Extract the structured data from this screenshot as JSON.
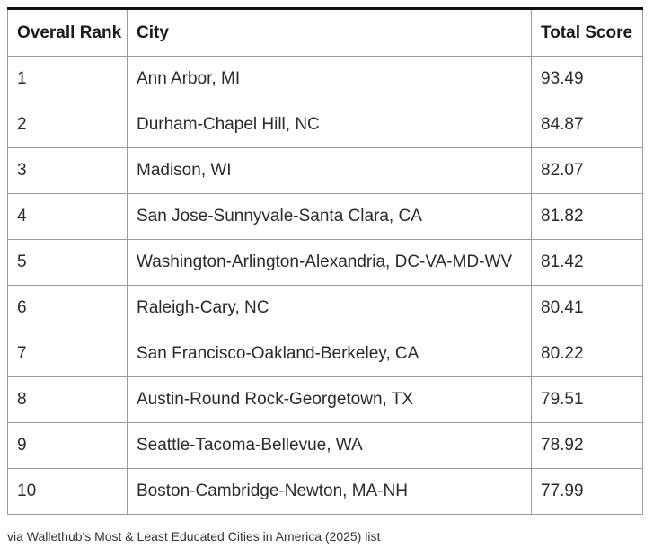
{
  "table": {
    "headers": [
      "Overall Rank",
      "City",
      "Total Score"
    ],
    "rows": [
      [
        "1",
        "Ann Arbor, MI",
        "93.49"
      ],
      [
        "2",
        "Durham-Chapel Hill, NC",
        "84.87"
      ],
      [
        "3",
        "Madison, WI",
        "82.07"
      ],
      [
        "4",
        "San Jose-Sunnyvale-Santa Clara, CA",
        "81.82"
      ],
      [
        "5",
        "Washington-Arlington-Alexandria, DC-VA-MD-WV",
        "81.42"
      ],
      [
        "6",
        "Raleigh-Cary, NC",
        "80.41"
      ],
      [
        "7",
        "San Francisco-Oakland-Berkeley, CA",
        "80.22"
      ],
      [
        "8",
        "Austin-Round Rock-Georgetown, TX",
        "79.51"
      ],
      [
        "9",
        "Seattle-Tacoma-Bellevue, WA",
        "78.92"
      ],
      [
        "10",
        "Boston-Cambridge-Newton, MA-NH",
        "77.99"
      ]
    ]
  },
  "caption": "via Wallethub's Most & Least Educated Cities in America (2025) list"
}
